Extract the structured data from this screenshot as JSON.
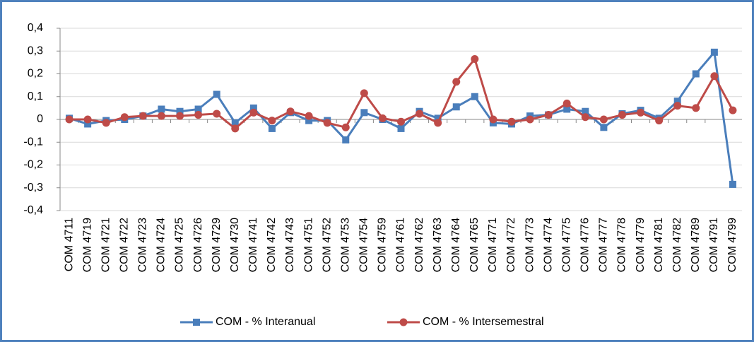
{
  "chart_data": {
    "type": "line",
    "categories": [
      "COM 4711",
      "COM 4719",
      "COM 4721",
      "COM 4722",
      "COM 4723",
      "COM 4724",
      "COM 4725",
      "COM 4726",
      "COM 4729",
      "COM 4730",
      "COM 4741",
      "COM 4742",
      "COM 4743",
      "COM 4751",
      "COM 4752",
      "COM 4753",
      "COM 4754",
      "COM 4759",
      "COM 4761",
      "COM 4762",
      "COM 4763",
      "COM 4764",
      "COM 4765",
      "COM 4771",
      "COM 4772",
      "COM 4773",
      "COM 4774",
      "COM 4775",
      "COM 4776",
      "COM 4777",
      "COM 4778",
      "COM 4779",
      "COM 4781",
      "COM 4782",
      "COM 4789",
      "COM 4791",
      "COM 4799"
    ],
    "series": [
      {
        "name": "COM - % Interanual",
        "color": "#4a7ebb",
        "marker": "square",
        "values": [
          0.005,
          -0.02,
          -0.005,
          0.0,
          0.015,
          0.045,
          0.035,
          0.045,
          0.11,
          -0.015,
          0.05,
          -0.04,
          0.03,
          -0.005,
          -0.005,
          -0.09,
          0.03,
          0.0,
          -0.04,
          0.035,
          0.005,
          0.055,
          0.1,
          -0.015,
          -0.02,
          0.015,
          0.02,
          0.045,
          0.035,
          -0.035,
          0.025,
          0.04,
          0.005,
          0.08,
          0.2,
          0.295,
          -0.285
        ]
      },
      {
        "name": "COM - % Intersemestral",
        "color": "#be4b48",
        "marker": "circle",
        "values": [
          0.0,
          0.0,
          -0.015,
          0.01,
          0.015,
          0.015,
          0.015,
          0.02,
          0.025,
          -0.04,
          0.03,
          -0.005,
          0.035,
          0.015,
          -0.015,
          -0.035,
          0.115,
          0.005,
          -0.01,
          0.025,
          -0.015,
          0.165,
          0.265,
          0.0,
          -0.01,
          0.0,
          0.02,
          0.07,
          0.01,
          0.0,
          0.02,
          0.03,
          -0.005,
          0.06,
          0.05,
          0.19,
          0.04
        ]
      }
    ],
    "ylim": [
      -0.4,
      0.4
    ],
    "yticks": [
      {
        "value": -0.4,
        "label": "-0,4"
      },
      {
        "value": -0.3,
        "label": "-0,3"
      },
      {
        "value": -0.2,
        "label": "-0,2"
      },
      {
        "value": -0.1,
        "label": "-0,1"
      },
      0,
      {
        "value": 0.1,
        "label": "0,1"
      },
      {
        "value": 0.2,
        "label": "0,2"
      },
      {
        "value": 0.3,
        "label": "0,3"
      },
      {
        "value": 0.4,
        "label": "0,4"
      }
    ],
    "grid": true,
    "legend": "bottom"
  }
}
